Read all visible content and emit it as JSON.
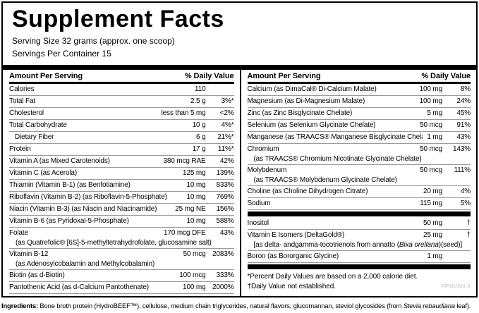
{
  "title": "Supplement Facts",
  "serving": {
    "size": "Serving Size 32 grams (approx. one scoop)",
    "per_container": "Servings Per Container 15"
  },
  "columns": {
    "amount_header": "Amount Per Serving",
    "dv_header": "% Daily Value"
  },
  "left_rows": [
    {
      "name": "Calories",
      "amount": "110",
      "dv": ""
    },
    {
      "name": "Total Fat",
      "amount": "2.5 g",
      "dv": "3%*"
    },
    {
      "name": "Cholesterol",
      "amount": "less than 5 mg",
      "dv": "<2%"
    },
    {
      "name": "Total Carbohydrate",
      "amount": "10 g",
      "dv": "4%*"
    },
    {
      "name": "Dietary Fiber",
      "amount": "6 g",
      "dv": "21%*",
      "indent": true
    },
    {
      "name": "Protein",
      "amount": "17 g",
      "dv": "11%*"
    },
    {
      "name": "Vitamin A (as Mixed Carotenoids)",
      "amount": "380 mcg RAE",
      "dv": "42%"
    },
    {
      "name": "Vitamin C (as Acerola)",
      "amount": "125 mg",
      "dv": "139%"
    },
    {
      "name": "Thiamin (Vitamin B-1)  (as Benfotiamine)",
      "amount": "10 mg",
      "dv": "833%"
    },
    {
      "name": "Riboflavin (Vitamin B-2) (as Riboflavin-5-Phosphate)",
      "amount": "10 mg",
      "dv": "769%"
    },
    {
      "name": "Niacin (Vitamin B-3) (as Niacin and Niacinamide)",
      "amount": "25 mg NE",
      "dv": "156%"
    },
    {
      "name": "Vitamin B-6 (as Pyridoxal-5-Phosphate)",
      "amount": "10 mg",
      "dv": "588%"
    },
    {
      "name": "Folate",
      "amount": "170 mcg DFE",
      "dv": "43%",
      "sub": [
        {
          "t": "(as Quatrefolic® [6S]-5-methyltetrahydrofolate, glucosamine salt)"
        }
      ]
    },
    {
      "name": "Vitamin B-12",
      "amount": "50 mcg",
      "dv": "2083%",
      "sub": [
        {
          "t": "(as Adenosylcobalamin and Methylcobalamin)"
        }
      ]
    },
    {
      "name": "Biotin (as d-Biotin)",
      "amount": "100 mcg",
      "dv": "333%"
    },
    {
      "name": "Pantothenic Acid (as d-Calcium Pantothenate)",
      "amount": "100 mg",
      "dv": "2000%"
    }
  ],
  "right_rows": [
    {
      "name": "Calcium (as DimaCal® Di-Calcium Malate)",
      "amount": "100 mg",
      "dv": "8%"
    },
    {
      "name": "Magnesium (as Di-Magnesium Malate)",
      "amount": "100 mg",
      "dv": "24%"
    },
    {
      "name": "Zinc (as Zinc Bisglycinate Chelate)",
      "amount": "5 mg",
      "dv": "45%"
    },
    {
      "name": "Selenium (as Selenium Glycinate Chelate)",
      "amount": "50 mcg",
      "dv": "91%"
    },
    {
      "name": "Manganese (as TRAACS® Manganese Bisglycinate Chelate)",
      "amount": "1 mg",
      "dv": "43%"
    },
    {
      "name": "Chromium",
      "amount": "50 mcg",
      "dv": "143%",
      "sub": [
        {
          "t": "(as TRAACS® Chromium Nicotinate Glycinate Chelate)"
        }
      ]
    },
    {
      "name": "Molybdenum",
      "amount": "50 mcg",
      "dv": "111%",
      "sub": [
        {
          "t": "(as TRAACS® Molybdenum Glycinate Chelate)"
        }
      ]
    },
    {
      "name": "Choline  (as Choline Dihydrogen Citrate)",
      "amount": "20 mg",
      "dv": "4%"
    },
    {
      "name": "Sodium",
      "amount": "115 mg",
      "dv": "5%"
    },
    {
      "type": "bar"
    },
    {
      "name": "Inositol",
      "amount": "50 mg",
      "dv": "†"
    },
    {
      "name": "Vitamin E Isomers (DeltaGold®)",
      "amount": "25 mg",
      "dv": "†",
      "sub": [
        {
          "t": "[as delta- andgamma-tocotrienols from annatto ("
        },
        {
          "t": "Bixa orellana",
          "i": true
        },
        {
          "t": ")(seed)]"
        }
      ]
    },
    {
      "name": "Boron (as Bororganic Glycine)",
      "amount": "1 mg",
      "dv": ""
    },
    {
      "type": "bar"
    }
  ],
  "footnotes": {
    "percent": "*Percent Daily Values are based on a 2,000 calorie diet.",
    "dagger": "†Daily Value not established.",
    "code": "PPMVAN-8"
  },
  "ingredients": {
    "parts": [
      {
        "t": "Ingredients:",
        "b": true
      },
      {
        "t": " Bone broth protein (HydroBEEF™), cellulose, medium chain triglycerides, natural flavors, glucomannan, steviol glycosides (from "
      },
      {
        "t": "Stevia rebaudiana",
        "i": true
      },
      {
        "t": " leaf)."
      }
    ]
  }
}
